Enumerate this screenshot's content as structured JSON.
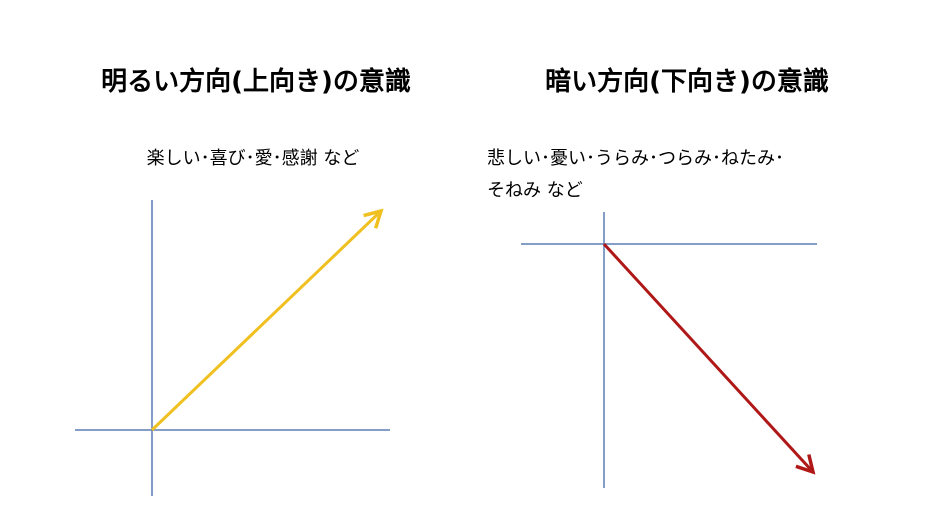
{
  "panels": [
    {
      "title": "明るい方向(上向き)の意識",
      "description": [
        "楽しい･喜び･愛･感謝 など"
      ]
    },
    {
      "title": "暗い方向(下向き)の意識",
      "description": [
        "悲しい･憂い･うらみ･つらみ･ねたみ･",
        "そねみ など"
      ]
    }
  ]
}
